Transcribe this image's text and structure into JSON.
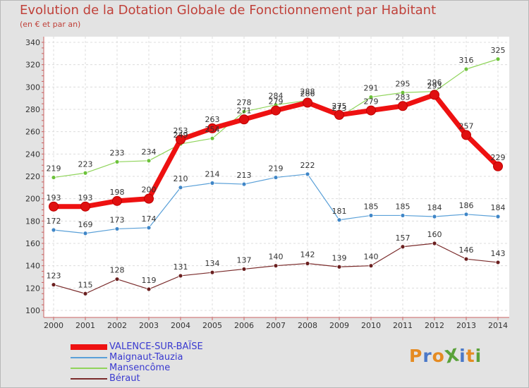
{
  "title": "Evolution de la Dotation Globale de Fonctionnement par Habitant",
  "subtitle": "(en € et par an)",
  "logo": {
    "text": "ProXiti",
    "colors": [
      "#e58b22",
      "#4a78c8",
      "#e58b22",
      "#5aa23a",
      "#4a78c8",
      "#e58b22",
      "#5aa23a"
    ]
  },
  "chart_data": {
    "type": "line",
    "title": "Evolution de la Dotation Globale de Fonctionnement par Habitant",
    "subtitle": "(en € et par an)",
    "x": [
      "2000",
      "2001",
      "2002",
      "2003",
      "2004",
      "2005",
      "2006",
      "2007",
      "2008",
      "2009",
      "2010",
      "2011",
      "2012",
      "2013",
      "2014"
    ],
    "ylim": [
      100,
      340
    ],
    "yticks": [
      100,
      120,
      140,
      160,
      180,
      200,
      220,
      240,
      260,
      280,
      300,
      320,
      340
    ],
    "grid": true,
    "legend_position": "bottom-left",
    "series": [
      {
        "name": "Mansencôme",
        "color": "#8fd45a",
        "dot": "#6cc23a",
        "width": 1.2,
        "radius": 3,
        "values": [
          219,
          223,
          233,
          234,
          249,
          254,
          278,
          284,
          288,
          273,
          291,
          295,
          296,
          316,
          325
        ]
      },
      {
        "name": "Maignaut-Tauzia",
        "color": "#5aa0d8",
        "dot": "#3f86c7",
        "width": 1.2,
        "radius": 3,
        "values": [
          172,
          169,
          173,
          174,
          210,
          214,
          213,
          219,
          222,
          181,
          185,
          185,
          184,
          186,
          184
        ]
      },
      {
        "name": "Béraut",
        "color": "#7a2b2b",
        "dot": "#6a1f1f",
        "width": 1.2,
        "radius": 3,
        "values": [
          123,
          115,
          128,
          119,
          131,
          134,
          137,
          140,
          142,
          139,
          140,
          157,
          160,
          146,
          143
        ]
      },
      {
        "name": "VALENCE-SUR-BAÏSE",
        "color": "#ee1111",
        "dot": "#e01010",
        "width": 7,
        "radius": 6.5,
        "values": [
          193,
          193,
          198,
          200,
          253,
          263,
          271,
          279,
          286,
          275,
          279,
          283,
          293,
          257,
          229
        ]
      }
    ],
    "legend_order": [
      "VALENCE-SUR-BAÏSE",
      "Maignaut-Tauzia",
      "Mansencôme",
      "Béraut"
    ]
  }
}
